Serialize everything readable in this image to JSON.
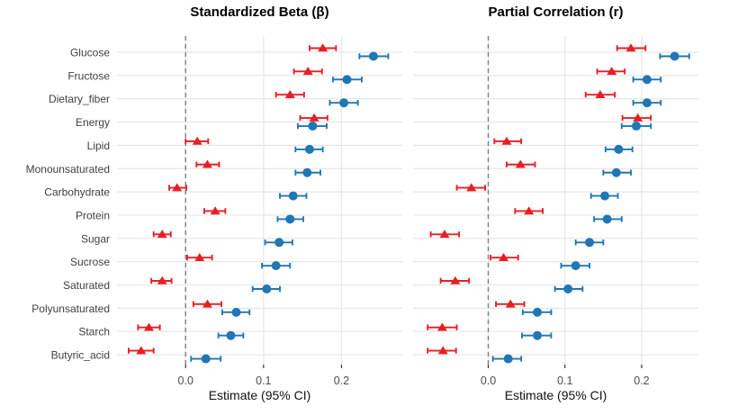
{
  "figure": {
    "background": "#ffffff"
  },
  "panels": [
    {
      "title": "Standardized Beta (β)"
    },
    {
      "title": "Partial Correlation (r)"
    }
  ],
  "axis": {
    "x_title": "Estimate (95% CI)"
  },
  "colors": {
    "red_series": "#e81e25",
    "blue_series": "#1f77b4",
    "grid": "#e6e6e6",
    "zero_line": "#7f7f7f",
    "category_text": "#404040",
    "tick_text": "#4d4d4d",
    "tick_mark": "#333333"
  },
  "chart_data": {
    "type": "scatter",
    "subtype": "forest-dot-whisker",
    "grid": true,
    "legend": false,
    "categories": [
      "Glucose",
      "Fructose",
      "Dietary_fiber",
      "Energy",
      "Lipid",
      "Monounsaturated",
      "Carbohydrate",
      "Protein",
      "Sugar",
      "Sucrose",
      "Saturated",
      "Polyunsaturated",
      "Starch",
      "Butyric_acid"
    ],
    "x_ticks": [
      0.0,
      0.1,
      0.2
    ],
    "x_tick_labels": [
      "0.0",
      "0.1",
      "0.2"
    ],
    "zero_line": {
      "x": 0.0,
      "style": "dashed",
      "color": "#7f7f7f"
    },
    "panels": [
      {
        "title": "Standardized Beta (β)",
        "xlabel": "Estimate (95% CI)",
        "xlim": [
          -0.088,
          0.278
        ],
        "series": [
          {
            "name": "red-triangle",
            "marker": "triangle",
            "color": "#e81e25",
            "points_format": [
              "estimate",
              "ci_low",
              "ci_high"
            ],
            "points": [
              [
                0.176,
                0.159,
                0.193
              ],
              [
                0.157,
                0.139,
                0.175
              ],
              [
                0.134,
                0.116,
                0.152
              ],
              [
                0.165,
                0.147,
                0.182
              ],
              [
                0.015,
                0.0,
                0.029
              ],
              [
                0.028,
                0.014,
                0.043
              ],
              [
                -0.011,
                -0.021,
                0.001
              ],
              [
                0.038,
                0.024,
                0.051
              ],
              [
                -0.03,
                -0.041,
                -0.019
              ],
              [
                0.018,
                0.002,
                0.034
              ],
              [
                -0.03,
                -0.044,
                -0.018
              ],
              [
                0.028,
                0.01,
                0.046
              ],
              [
                -0.047,
                -0.061,
                -0.033
              ],
              [
                -0.057,
                -0.073,
                -0.041
              ]
            ]
          },
          {
            "name": "blue-circle",
            "marker": "circle",
            "color": "#1f77b4",
            "points_format": [
              "estimate",
              "ci_low",
              "ci_high"
            ],
            "points": [
              [
                0.241,
                0.223,
                0.26
              ],
              [
                0.207,
                0.189,
                0.226
              ],
              [
                0.203,
                0.185,
                0.221
              ],
              [
                0.163,
                0.144,
                0.181
              ],
              [
                0.159,
                0.141,
                0.176
              ],
              [
                0.156,
                0.141,
                0.173
              ],
              [
                0.138,
                0.121,
                0.155
              ],
              [
                0.134,
                0.118,
                0.151
              ],
              [
                0.12,
                0.102,
                0.137
              ],
              [
                0.116,
                0.098,
                0.134
              ],
              [
                0.104,
                0.086,
                0.121
              ],
              [
                0.065,
                0.047,
                0.082
              ],
              [
                0.058,
                0.042,
                0.074
              ],
              [
                0.026,
                0.007,
                0.045
              ]
            ]
          }
        ]
      },
      {
        "title": "Partial Correlation (r)",
        "xlabel": "Estimate (95% CI)",
        "xlim": [
          -0.098,
          0.274
        ],
        "series": [
          {
            "name": "red-triangle",
            "marker": "triangle",
            "color": "#e81e25",
            "points_format": [
              "estimate",
              "ci_low",
              "ci_high"
            ],
            "points": [
              [
                0.186,
                0.168,
                0.205
              ],
              [
                0.161,
                0.142,
                0.178
              ],
              [
                0.146,
                0.127,
                0.165
              ],
              [
                0.195,
                0.175,
                0.212
              ],
              [
                0.024,
                0.008,
                0.043
              ],
              [
                0.042,
                0.024,
                0.061
              ],
              [
                -0.022,
                -0.041,
                -0.004
              ],
              [
                0.053,
                0.035,
                0.071
              ],
              [
                -0.057,
                -0.075,
                -0.038
              ],
              [
                0.02,
                0.003,
                0.039
              ],
              [
                -0.043,
                -0.062,
                -0.025
              ],
              [
                0.029,
                0.01,
                0.047
              ],
              [
                -0.06,
                -0.079,
                -0.041
              ],
              [
                -0.059,
                -0.079,
                -0.042
              ]
            ]
          },
          {
            "name": "blue-circle",
            "marker": "circle",
            "color": "#1f77b4",
            "points_format": [
              "estimate",
              "ci_low",
              "ci_high"
            ],
            "points": [
              [
                0.243,
                0.224,
                0.262
              ],
              [
                0.207,
                0.189,
                0.225
              ],
              [
                0.207,
                0.189,
                0.225
              ],
              [
                0.193,
                0.174,
                0.212
              ],
              [
                0.17,
                0.153,
                0.188
              ],
              [
                0.167,
                0.15,
                0.186
              ],
              [
                0.152,
                0.134,
                0.169
              ],
              [
                0.155,
                0.138,
                0.174
              ],
              [
                0.132,
                0.114,
                0.15
              ],
              [
                0.114,
                0.095,
                0.132
              ],
              [
                0.104,
                0.087,
                0.123
              ],
              [
                0.064,
                0.045,
                0.082
              ],
              [
                0.064,
                0.044,
                0.082
              ],
              [
                0.026,
                0.006,
                0.043
              ]
            ]
          }
        ]
      }
    ]
  }
}
